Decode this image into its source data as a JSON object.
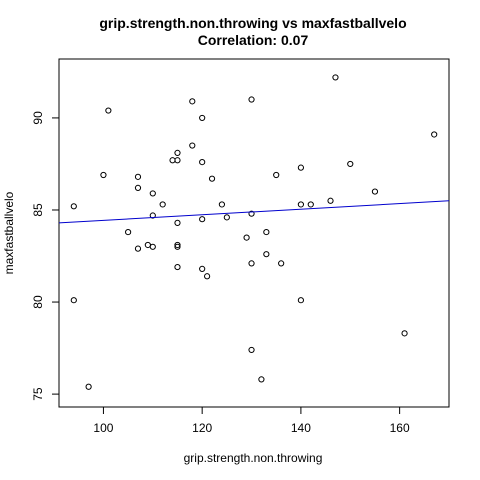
{
  "chart_data": {
    "type": "scatter",
    "title": "grip.strength.non.throwing vs maxfastballvelo",
    "subtitle": "Correlation: 0.07",
    "xlabel": "grip.strength.non.throwing",
    "ylabel": "maxfastballvelo",
    "xlim": [
      91,
      170
    ],
    "ylim": [
      74.3,
      93.2
    ],
    "xticks": [
      100,
      120,
      140,
      160
    ],
    "yticks": [
      75,
      80,
      85,
      90
    ],
    "grid": false,
    "points": [
      {
        "x": 94,
        "y": 85.2
      },
      {
        "x": 94,
        "y": 80.1
      },
      {
        "x": 97,
        "y": 75.4
      },
      {
        "x": 100,
        "y": 86.9
      },
      {
        "x": 101,
        "y": 90.4
      },
      {
        "x": 105,
        "y": 83.8
      },
      {
        "x": 107,
        "y": 86.8
      },
      {
        "x": 107,
        "y": 86.2
      },
      {
        "x": 107,
        "y": 82.9
      },
      {
        "x": 109,
        "y": 83.1
      },
      {
        "x": 110,
        "y": 83.0
      },
      {
        "x": 110,
        "y": 84.7
      },
      {
        "x": 110,
        "y": 85.9
      },
      {
        "x": 112,
        "y": 85.3
      },
      {
        "x": 114,
        "y": 87.7
      },
      {
        "x": 115,
        "y": 88.1
      },
      {
        "x": 115,
        "y": 87.7
      },
      {
        "x": 115,
        "y": 84.3
      },
      {
        "x": 115,
        "y": 83.1
      },
      {
        "x": 115,
        "y": 83.0
      },
      {
        "x": 115,
        "y": 81.9
      },
      {
        "x": 118,
        "y": 90.9
      },
      {
        "x": 118,
        "y": 88.5
      },
      {
        "x": 120,
        "y": 90.0
      },
      {
        "x": 120,
        "y": 87.6
      },
      {
        "x": 120,
        "y": 84.5
      },
      {
        "x": 120,
        "y": 81.8
      },
      {
        "x": 121,
        "y": 81.4
      },
      {
        "x": 122,
        "y": 86.7
      },
      {
        "x": 124,
        "y": 85.3
      },
      {
        "x": 125,
        "y": 84.6
      },
      {
        "x": 129,
        "y": 83.5
      },
      {
        "x": 130,
        "y": 91.0
      },
      {
        "x": 130,
        "y": 84.8
      },
      {
        "x": 130,
        "y": 82.1
      },
      {
        "x": 130,
        "y": 77.4
      },
      {
        "x": 132,
        "y": 75.8
      },
      {
        "x": 133,
        "y": 83.8
      },
      {
        "x": 133,
        "y": 82.6
      },
      {
        "x": 135,
        "y": 86.9
      },
      {
        "x": 136,
        "y": 82.1
      },
      {
        "x": 140,
        "y": 87.3
      },
      {
        "x": 140,
        "y": 85.3
      },
      {
        "x": 140,
        "y": 80.1
      },
      {
        "x": 142,
        "y": 85.3
      },
      {
        "x": 146,
        "y": 85.5
      },
      {
        "x": 147,
        "y": 92.2
      },
      {
        "x": 150,
        "y": 87.5
      },
      {
        "x": 155,
        "y": 86.0
      },
      {
        "x": 161,
        "y": 78.3
      },
      {
        "x": 167,
        "y": 89.1
      }
    ],
    "regression_line": {
      "x": [
        91,
        170
      ],
      "y": [
        84.3,
        85.5
      ],
      "color": "#0000cd"
    },
    "point_color": "#000000"
  }
}
